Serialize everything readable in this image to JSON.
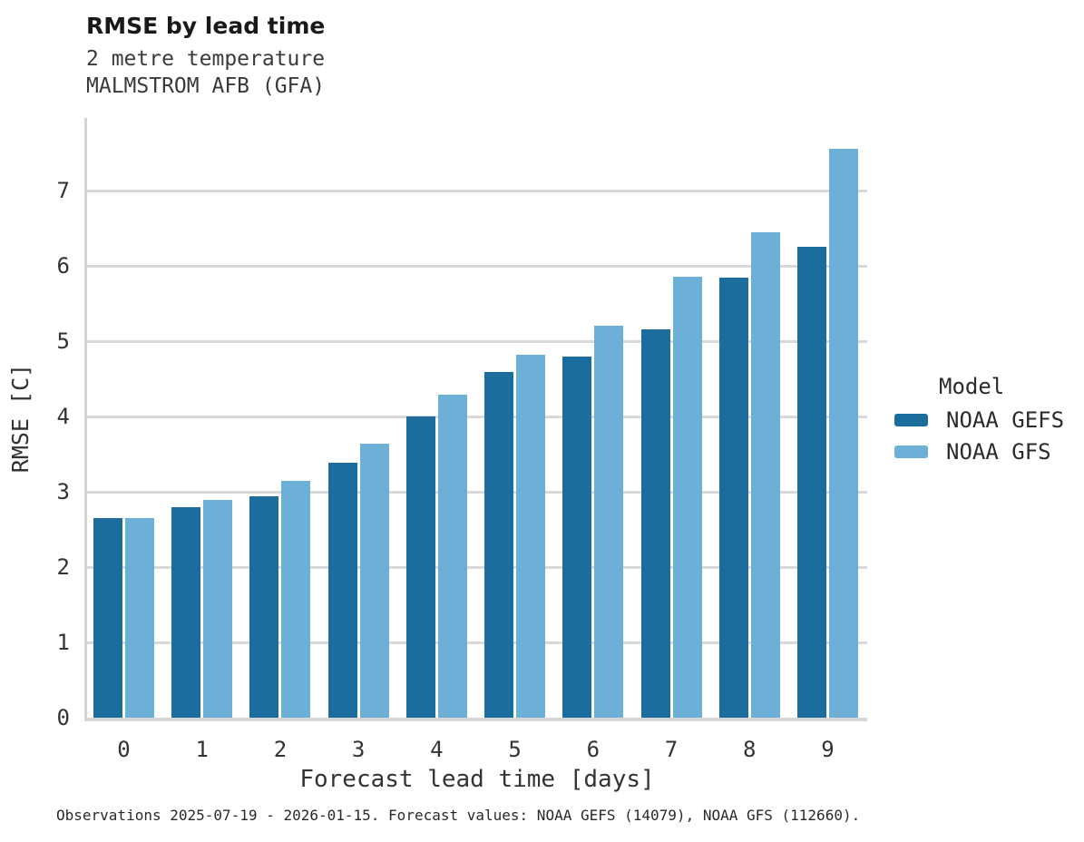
{
  "header": {
    "title": "RMSE by lead time",
    "subtitle_line1": "2 metre temperature",
    "subtitle_line2": "MALMSTROM AFB (GFA)"
  },
  "chart_data": {
    "type": "bar",
    "title": "RMSE by lead time",
    "subtitle": [
      "2 metre temperature",
      "MALMSTROM AFB (GFA)"
    ],
    "categories": [
      "0",
      "1",
      "2",
      "3",
      "4",
      "5",
      "6",
      "7",
      "8",
      "9"
    ],
    "series": [
      {
        "name": "NOAA GEFS",
        "color": "#1b6d9e",
        "values": [
          2.65,
          2.79,
          2.94,
          3.39,
          4.0,
          4.59,
          4.79,
          5.16,
          5.84,
          6.25
        ]
      },
      {
        "name": "NOAA GFS",
        "color": "#6cb0d8",
        "values": [
          2.65,
          2.89,
          3.14,
          3.64,
          4.29,
          4.82,
          5.21,
          5.86,
          6.45,
          7.56
        ]
      }
    ],
    "xlabel": "Forecast lead time [days]",
    "ylabel": "RMSE [C]",
    "ylim": [
      0,
      7.97
    ],
    "yticks": [
      0,
      1,
      2,
      3,
      4,
      5,
      6,
      7
    ],
    "grid": true,
    "grid_color": "#d9d9d9",
    "legend_title": "Model",
    "legend_position": "right"
  },
  "legend": {
    "title": "Model",
    "items": [
      {
        "label": "NOAA GEFS",
        "color": "#1b6d9e"
      },
      {
        "label": "NOAA GFS",
        "color": "#6cb0d8"
      }
    ]
  },
  "footer": {
    "caption": "Observations 2025-07-19 - 2026-01-15. Forecast values: NOAA GEFS (14079), NOAA GFS (112660)."
  }
}
